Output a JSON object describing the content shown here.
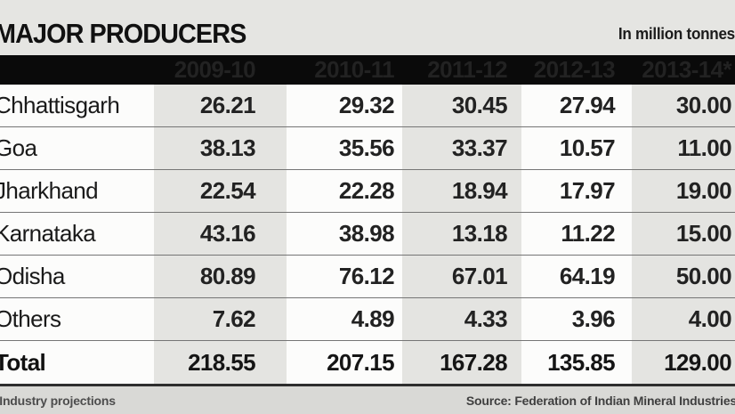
{
  "chart_data": {
    "type": "table",
    "title": "MAJOR PRODUCERS",
    "unit": "In million tonnes",
    "columns": [
      "2009-10",
      "2010-11",
      "2011-12",
      "2012-13",
      "2013-14*"
    ],
    "rows": [
      {
        "label": "Chhattisgarh",
        "values": [
          "26.21",
          "29.32",
          "30.45",
          "27.94",
          "30.00"
        ]
      },
      {
        "label": "Goa",
        "values": [
          "38.13",
          "35.56",
          "33.37",
          "10.57",
          "11.00"
        ]
      },
      {
        "label": "Jharkhand",
        "values": [
          "22.54",
          "22.28",
          "18.94",
          "17.97",
          "19.00"
        ]
      },
      {
        "label": "Karnataka",
        "values": [
          "43.16",
          "38.98",
          "13.18",
          "11.22",
          "15.00"
        ]
      },
      {
        "label": "Odisha",
        "values": [
          "80.89",
          "76.12",
          "67.01",
          "64.19",
          "50.00"
        ]
      },
      {
        "label": "Others",
        "values": [
          "7.62",
          "4.89",
          "4.33",
          "3.96",
          "4.00"
        ]
      },
      {
        "label": "Total",
        "values": [
          "218.55",
          "207.15",
          "167.28",
          "135.85",
          "129.00"
        ],
        "is_total": true
      }
    ]
  },
  "footer": {
    "note": "*Industry projections",
    "source": "Source: Federation of Indian Mineral Industries"
  }
}
